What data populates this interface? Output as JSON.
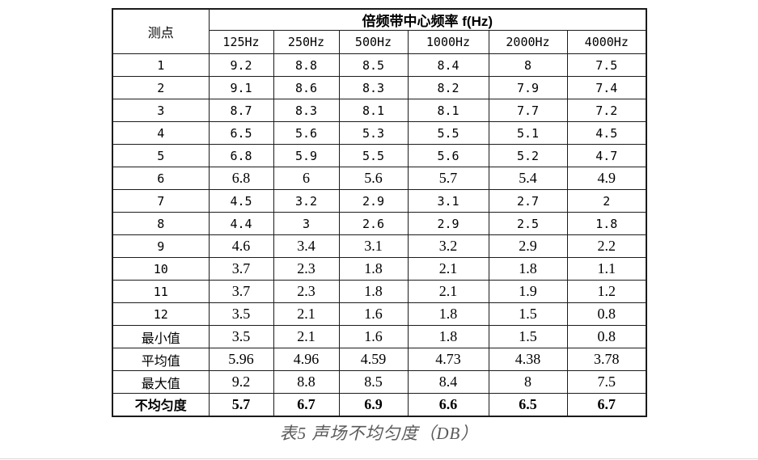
{
  "table": {
    "corner_label": "测点",
    "group_header": "倍频带中心频率 f(Hz)",
    "columns": [
      "125Hz",
      "250Hz",
      "500Hz",
      "1000Hz",
      "2000Hz",
      "4000Hz"
    ],
    "rows": [
      {
        "label": "1",
        "values": [
          "9.2",
          "8.8",
          "8.5",
          "8.4",
          "8",
          "7.5"
        ]
      },
      {
        "label": "2",
        "values": [
          "9.1",
          "8.6",
          "8.3",
          "8.2",
          "7.9",
          "7.4"
        ]
      },
      {
        "label": "3",
        "values": [
          "8.7",
          "8.3",
          "8.1",
          "8.1",
          "7.7",
          "7.2"
        ]
      },
      {
        "label": "4",
        "values": [
          "6.5",
          "5.6",
          "5.3",
          "5.5",
          "5.1",
          "4.5"
        ]
      },
      {
        "label": "5",
        "values": [
          "6.8",
          "5.9",
          "5.5",
          "5.6",
          "5.2",
          "4.7"
        ]
      },
      {
        "label": "6",
        "values": [
          "6.8",
          "6",
          "5.6",
          "5.7",
          "5.4",
          "4.9"
        ]
      },
      {
        "label": "7",
        "values": [
          "4.5",
          "3.2",
          "2.9",
          "3.1",
          "2.7",
          "2"
        ]
      },
      {
        "label": "8",
        "values": [
          "4.4",
          "3",
          "2.6",
          "2.9",
          "2.5",
          "1.8"
        ]
      },
      {
        "label": "9",
        "values": [
          "4.6",
          "3.4",
          "3.1",
          "3.2",
          "2.9",
          "2.2"
        ]
      },
      {
        "label": "10",
        "values": [
          "3.7",
          "2.3",
          "1.8",
          "2.1",
          "1.8",
          "1.1"
        ]
      },
      {
        "label": "11",
        "values": [
          "3.7",
          "2.3",
          "1.8",
          "2.1",
          "1.9",
          "1.2"
        ]
      },
      {
        "label": "12",
        "values": [
          "3.5",
          "2.1",
          "1.6",
          "1.8",
          "1.5",
          "0.8"
        ]
      },
      {
        "label": "最小值",
        "values": [
          "3.5",
          "2.1",
          "1.6",
          "1.8",
          "1.5",
          "0.8"
        ]
      },
      {
        "label": "平均值",
        "values": [
          "5.96",
          "4.96",
          "4.59",
          "4.73",
          "4.38",
          "3.78"
        ]
      },
      {
        "label": "最大值",
        "values": [
          "9.2",
          "8.8",
          "8.5",
          "8.4",
          "8",
          "7.5"
        ]
      },
      {
        "label": "不均匀度",
        "values": [
          "5.7",
          "6.7",
          "6.9",
          "6.6",
          "6.5",
          "6.7"
        ]
      }
    ]
  },
  "caption": "表5 声场不均匀度（DB）",
  "colors": {
    "border": "#1b1b1b",
    "text": "#000000",
    "caption_text": "#595959",
    "bottom_rule": "#d9d9d9",
    "background": "#ffffff"
  }
}
